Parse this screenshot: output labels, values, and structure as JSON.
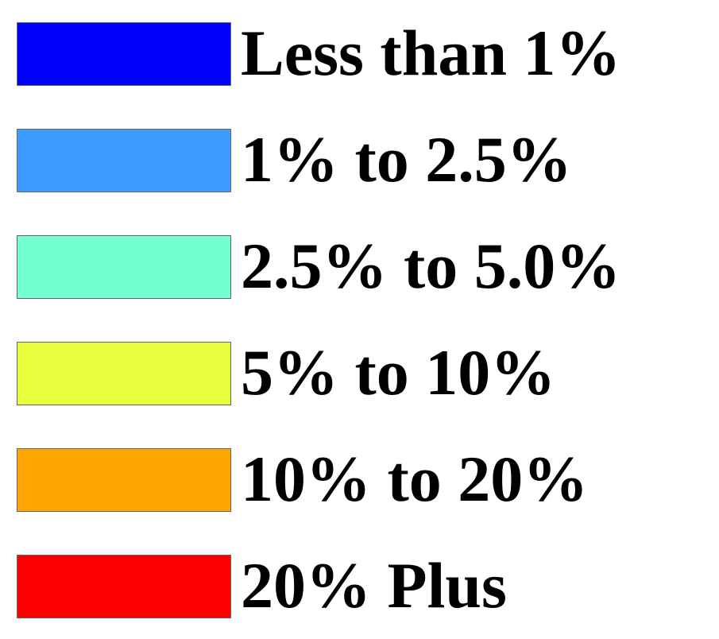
{
  "legend": {
    "items": [
      {
        "label": "Less than 1%",
        "color": "#0000ff"
      },
      {
        "label": "1% to 2.5%",
        "color": "#3d9cff"
      },
      {
        "label": "2.5% to 5.0%",
        "color": "#72ffd1"
      },
      {
        "label": "5% to 10%",
        "color": "#e8ff3e"
      },
      {
        "label": "10% to 20%",
        "color": "#ffa500"
      },
      {
        "label": "20% Plus",
        "color": "#ff0000"
      }
    ]
  }
}
